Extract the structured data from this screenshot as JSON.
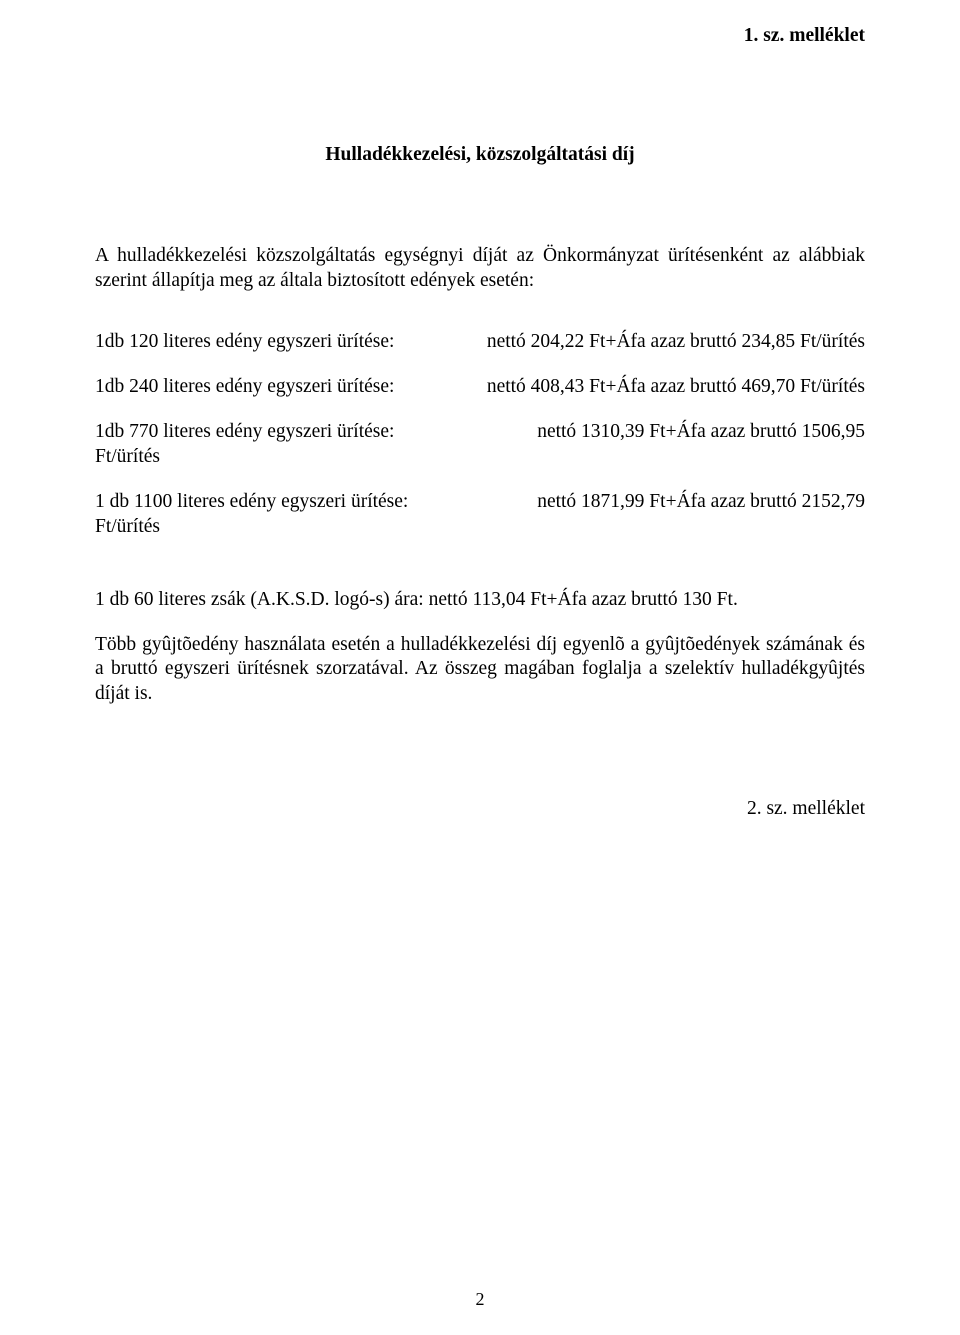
{
  "header_right": "1. sz. melléklet",
  "title": "Hulladékkezelési, közszolgáltatási díj",
  "intro": "A hulladékkezelési közszolgáltatás egységnyi díját az Önkormányzat ürítésenként az alábbiak szerint állapítja meg az általa biztosított edények esetén:",
  "rows": [
    {
      "left": "1db 120  literes edény egyszeri ürítése:",
      "right": "nettó 204,22 Ft+Áfa  azaz bruttó 234,85 Ft/ürítés"
    },
    {
      "left": "1db 240  literes edény egyszeri ürítése:",
      "right": "nettó 408,43 Ft+Áfa  azaz bruttó 469,70 Ft/ürítés"
    }
  ],
  "block_rows": [
    {
      "left": "1db 770  literes edény egyszeri ürítése:",
      "right": "nettó  1310,39  Ft+Áfa  azaz  bruttó  1506,95",
      "cont": "Ft/ürítés"
    },
    {
      "left": "1 db 1100 literes edény egyszeri ürítése:",
      "right": "nettó  1871,99  Ft+Áfa  azaz  bruttó  2152,79",
      "cont": "Ft/ürítés"
    }
  ],
  "bag": "1 db 60 literes zsák (A.K.S.D. logó-s) ára:  nettó 113,04 Ft+Áfa azaz bruttó 130 Ft.",
  "final": "Több gyûjtõedény használata esetén a hulladékkezelési díj egyenlõ a gyûjtõedények számának és a bruttó egyszeri ürítésnek szorzatával. Az összeg magában foglalja a szelektív hulladékgyûjtés díját is.",
  "footer_right": "2. sz. melléklet",
  "page_number": "2"
}
